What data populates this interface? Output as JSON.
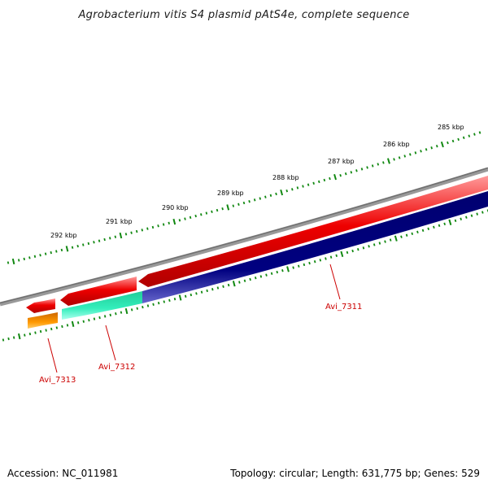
{
  "title": "Agrobacterium vitis S4 plasmid pAtS4e, complete sequence",
  "footer": {
    "accession": "Accession: NC_011981",
    "summary": "Topology: circular; Length: 631,775 bp; Genes: 529"
  },
  "kbp_labels": [
    "285 kbp",
    "286 kbp",
    "287 kbp",
    "288 kbp",
    "289 kbp",
    "290 kbp",
    "291 kbp",
    "292 kbp"
  ],
  "gene_labels": [
    "Avi_7311",
    "Avi_7312",
    "Avi_7313"
  ],
  "colors": {
    "backbone": "#808080",
    "cds_forward": "#ee0000",
    "cds_reverse": "#000080",
    "gene_teal": "#33eebb",
    "gene_orange": "#ff9900",
    "ticks": "#118811",
    "label": "#cc0000"
  }
}
